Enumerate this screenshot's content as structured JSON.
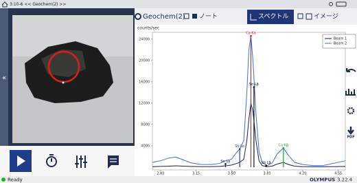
{
  "header": {
    "title": "3:10-6 << Geochem(2) >>"
  },
  "tabs": [
    "Geochem(2)",
    "ノート",
    "スペクトル",
    "イメージ"
  ],
  "status": {
    "state": "Ready",
    "brand": "OLYMPUS",
    "version": "3.22.4"
  },
  "toolbar": {
    "pdf": "PDF"
  },
  "chart_data": {
    "type": "line",
    "y_label": "counts/sec",
    "x": [
      2.72,
      2.8,
      2.88,
      2.95,
      3.02,
      3.1,
      3.2,
      3.3,
      3.38,
      3.44,
      3.5,
      3.55,
      3.58,
      3.62,
      3.65,
      3.67,
      3.69,
      3.71,
      3.74,
      3.77,
      3.8,
      3.85,
      3.9,
      3.95,
      4.01,
      4.06,
      4.12,
      4.2,
      4.3,
      4.4,
      4.5,
      4.62
    ],
    "series": [
      {
        "name": "Beam 1",
        "color": "#1a1a5e",
        "values": [
          100,
          150,
          200,
          250,
          200,
          150,
          100,
          100,
          150,
          250,
          400,
          700,
          900,
          1500,
          5000,
          9000,
          12000,
          10500,
          5000,
          1200,
          300,
          100,
          200,
          600,
          900,
          500,
          200,
          100,
          80,
          80,
          100,
          150
        ]
      },
      {
        "name": "Beam 2",
        "color": "#3c6fd1",
        "values": [
          900,
          1200,
          1700,
          1900,
          1400,
          800,
          500,
          500,
          700,
          1200,
          1500,
          2800,
          3400,
          5000,
          14000,
          22000,
          24600,
          20000,
          10000,
          3000,
          900,
          300,
          800,
          2500,
          3600,
          2200,
          900,
          500,
          300,
          300,
          700,
          1200
        ]
      }
    ],
    "annotations": [
      {
        "label": "Sn Lα",
        "x": 3.44,
        "value": 600,
        "color": "#1a1a5e"
      },
      {
        "label": "Sb Lα",
        "x": 3.58,
        "value": 3400,
        "color": "#2a3fa0"
      },
      {
        "label": "Ca Ka",
        "x": 3.69,
        "value": 24600,
        "color": "#e02020"
      },
      {
        "label": "Sn Lβ",
        "x": 3.72,
        "value": 15000,
        "color": "#111111"
      },
      {
        "label": "Sb Lβ",
        "x": 3.84,
        "value": 300,
        "color": "#111111"
      },
      {
        "label": "Ca Kβ",
        "x": 4.01,
        "value": 3600,
        "color": "#2aa02a"
      }
    ],
    "xlim": [
      2.72,
      4.62
    ],
    "ylim": [
      0,
      25000
    ],
    "xticks": [
      {
        "value": 2.8,
        "label": "2.80"
      },
      3.15,
      {
        "value": 3.5,
        "label": "3.50"
      },
      3.85,
      {
        "value": 4.2,
        "label": "4.20"
      },
      4.55
    ],
    "yticks": [
      4000,
      8000,
      12000,
      16000,
      20000,
      24000
    ],
    "legend": "top-right"
  }
}
